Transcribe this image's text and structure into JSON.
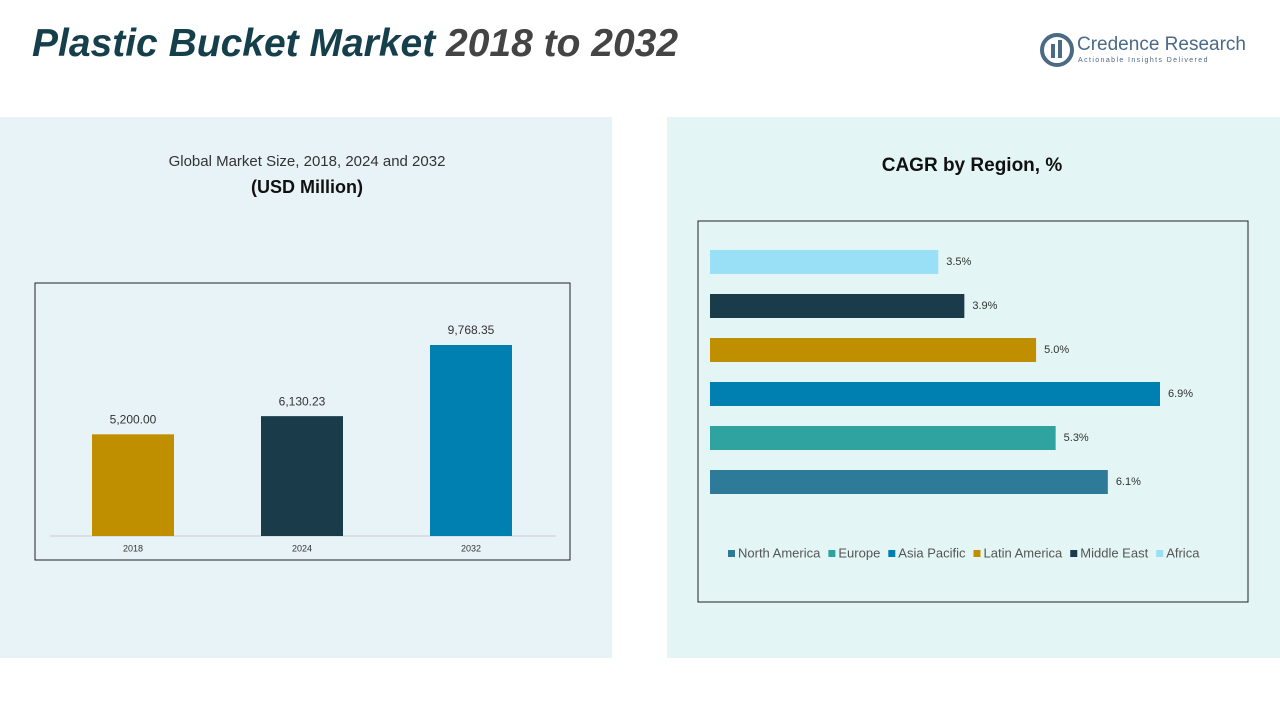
{
  "header": {
    "title_main": "Plastic Bucket Market",
    "title_years": "2018 to 2032",
    "brand": "Credence Research",
    "tagline": "Actionable Insights Delivered"
  },
  "chart_data": [
    {
      "type": "bar",
      "title": "Global Market Size, 2018, 2024 and 2032",
      "subtitle": "(USD Million)",
      "categories": [
        "2018",
        "2024",
        "2032"
      ],
      "values": [
        5200,
        6130.23,
        9768.35
      ],
      "value_labels": [
        "5,200.00",
        "6,130.23",
        "9,768.35"
      ],
      "colors": [
        "#c08f00",
        "#1a3c4a",
        "#0080b0"
      ]
    },
    {
      "type": "hbar",
      "title": "CAGR by Region, %",
      "categories": [
        "North America",
        "Europe",
        "Asia Pacific",
        "Latin America",
        "Middle East",
        "Africa"
      ],
      "values": [
        6.1,
        5.3,
        6.9,
        5.0,
        3.9,
        3.5
      ],
      "value_labels": [
        "6.1%",
        "5.3%",
        "6.9%",
        "5.0%",
        "3.9%",
        "3.5%"
      ],
      "colors": [
        "#2e7a99",
        "#2fa39f",
        "#0080b0",
        "#c08f00",
        "#1a3c4a",
        "#99e0f7"
      ],
      "legend": "bottom"
    }
  ]
}
